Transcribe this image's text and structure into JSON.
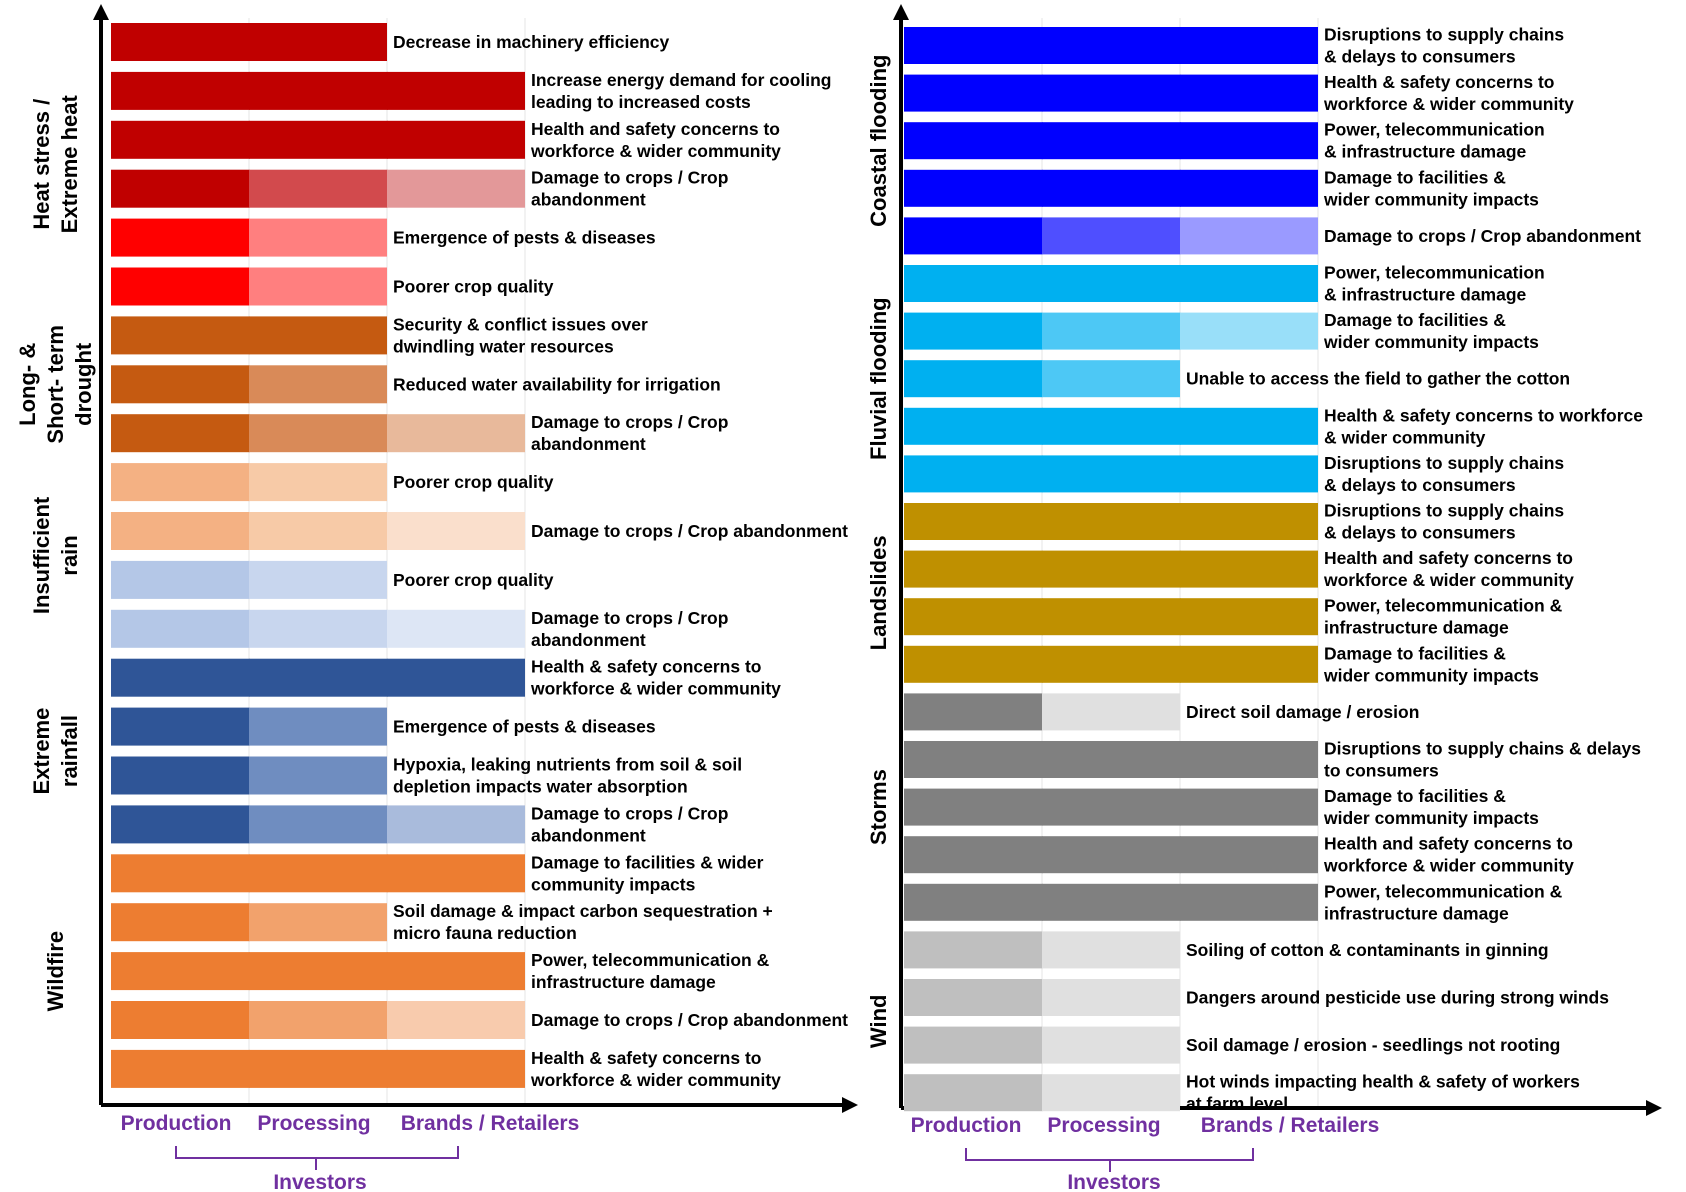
{
  "stage_labels": {
    "production": "Production",
    "processing": "Processing",
    "brands": "Brands / Retailers",
    "investors": "Investors"
  },
  "palettes": {
    "dark_red": [
      "#c00000"
    ],
    "red": [
      "#c00000",
      "#d24a4d",
      "#e39899"
    ],
    "bright_red": [
      "#ff0000",
      "#ff7f7f"
    ],
    "brown": [
      "#c55a11",
      "#d98a58",
      "#e8b99b"
    ],
    "peach": [
      "#f4b183",
      "#f7caa7",
      "#fadfcc"
    ],
    "light_blue": [
      "#b4c7e7",
      "#c8d6ee",
      "#dde6f5"
    ],
    "navy": [
      "#2f5597",
      "#6f8dc0",
      "#a9bbdc"
    ],
    "orange": [
      "#ed7d31",
      "#f2a26c",
      "#f8cbad"
    ],
    "blue": [
      "#0000ff",
      "#4f4fff",
      "#9a9aff"
    ],
    "sky": [
      "#00b0f0",
      "#4dc8f5",
      "#99dff9"
    ],
    "gold": [
      "#bf9000"
    ],
    "dark_gray": [
      "#808080",
      "#e0e0e0"
    ],
    "light_gray": [
      "#bfbfbf",
      "#e0e0e0"
    ]
  },
  "panels": [
    {
      "id": "left",
      "groups": [
        {
          "category": "Heat stress / Extreme heat",
          "category_lines": [
            "Heat stress /",
            "Extreme heat"
          ],
          "impacts": [
            {
              "label_lines": [
                "Decrease in machinery efficiency"
              ],
              "stages": 2,
              "palette": "dark_red"
            },
            {
              "label_lines": [
                "Increase energy demand for cooling",
                "leading to increased costs"
              ],
              "stages": 3,
              "palette": "dark_red"
            },
            {
              "label_lines": [
                "Health and safety concerns to",
                "workforce & wider community"
              ],
              "stages": 3,
              "palette": "dark_red"
            },
            {
              "label_lines": [
                "Damage to crops / Crop",
                "abandonment"
              ],
              "stages": 3,
              "palette": "red"
            },
            {
              "label_lines": [
                "Emergence of pests & diseases"
              ],
              "stages": 2,
              "palette": "bright_red"
            },
            {
              "label_lines": [
                "Poorer crop quality"
              ],
              "stages": 2,
              "palette": "bright_red"
            }
          ]
        },
        {
          "category": "Long- & Short- term drought",
          "category_lines": [
            "Long- &",
            "Short- term",
            "drought"
          ],
          "impacts": [
            {
              "label_lines": [
                "Security & conflict issues over",
                "dwindling  water resources"
              ],
              "stages": 2,
              "palette": "brown",
              "solid": true
            },
            {
              "label_lines": [
                "Reduced water availability  for irrigation"
              ],
              "stages": 2,
              "palette": "brown"
            },
            {
              "label_lines": [
                "Damage to crops / Crop",
                "abandonment"
              ],
              "stages": 3,
              "palette": "brown"
            }
          ]
        },
        {
          "category": "Insufficient rain",
          "category_lines": [
            "Insufficient",
            "rain"
          ],
          "impacts": [
            {
              "label_lines": [
                "Poorer crop quality"
              ],
              "stages": 2,
              "palette": "peach"
            },
            {
              "label_lines": [
                "Damage to crops / Crop abandonment"
              ],
              "stages": 3,
              "palette": "peach"
            },
            {
              "label_lines": [
                "Poorer crop quality"
              ],
              "stages": 2,
              "palette": "light_blue"
            },
            {
              "label_lines": [
                "Damage to crops / Crop",
                "abandonment"
              ],
              "stages": 3,
              "palette": "light_blue"
            }
          ]
        },
        {
          "category": "Extreme rainfall",
          "category_lines": [
            "Extreme",
            "rainfall"
          ],
          "impacts": [
            {
              "label_lines": [
                "Health & safety concerns to",
                "workforce & wider community"
              ],
              "stages": 3,
              "palette": "navy",
              "solid": true
            },
            {
              "label_lines": [
                "Emergence of pests & diseases"
              ],
              "stages": 2,
              "palette": "navy"
            },
            {
              "label_lines": [
                "Hypoxia, leaking  nutrients from soil & soil",
                "depletion impacts  water absorption"
              ],
              "stages": 2,
              "palette": "navy"
            },
            {
              "label_lines": [
                "Damage to crops / Crop",
                "abandonment"
              ],
              "stages": 3,
              "palette": "navy"
            }
          ]
        },
        {
          "category": "Wildfire",
          "category_lines": [
            "Wildfire"
          ],
          "impacts": [
            {
              "label_lines": [
                "Damage to facilities  & wider",
                "community impacts"
              ],
              "stages": 3,
              "palette": "orange",
              "solid": true
            },
            {
              "label_lines": [
                "Soil damage & impact carbon sequestration +",
                "micro fauna reduction"
              ],
              "stages": 2,
              "palette": "orange"
            },
            {
              "label_lines": [
                "Power, telecommunication  &",
                "infrastructure damage"
              ],
              "stages": 3,
              "palette": "orange",
              "solid": true
            },
            {
              "label_lines": [
                "Damage to crops / Crop abandonment"
              ],
              "stages": 3,
              "palette": "orange"
            },
            {
              "label_lines": [
                "Health & safety concerns to",
                "workforce & wider community"
              ],
              "stages": 3,
              "palette": "orange",
              "solid": true
            }
          ]
        }
      ]
    },
    {
      "id": "right",
      "groups": [
        {
          "category": "Coastal flooding",
          "category_lines": [
            "Coastal flooding"
          ],
          "impacts": [
            {
              "label_lines": [
                "Disruptions to supply chains",
                "& delays to consumers"
              ],
              "stages": 3,
              "palette": "blue",
              "solid": true
            },
            {
              "label_lines": [
                "Health & safety concerns to",
                "workforce & wider community"
              ],
              "stages": 3,
              "palette": "blue",
              "solid": true
            },
            {
              "label_lines": [
                "Power, telecommunication",
                "& infrastructure damage"
              ],
              "stages": 3,
              "palette": "blue",
              "solid": true
            },
            {
              "label_lines": [
                "Damage to facilities  &",
                "wider community impacts"
              ],
              "stages": 3,
              "palette": "blue",
              "solid": true
            },
            {
              "label_lines": [
                "Damage to crops / Crop abandonment"
              ],
              "stages": 3,
              "palette": "blue"
            }
          ]
        },
        {
          "category": "Fluvial flooding",
          "category_lines": [
            "Fluvial flooding"
          ],
          "impacts": [
            {
              "label_lines": [
                "Power, telecommunication",
                "& infrastructure damage"
              ],
              "stages": 3,
              "palette": "sky",
              "solid": true
            },
            {
              "label_lines": [
                "Damage to facilities  &",
                "wider community impacts"
              ],
              "stages": 3,
              "palette": "sky"
            },
            {
              "label_lines": [
                "Unable to access  the field to gather the cotton"
              ],
              "stages": 2,
              "palette": "sky"
            },
            {
              "label_lines": [
                "Health & safety concerns to workforce",
                "& wider community"
              ],
              "stages": 3,
              "palette": "sky",
              "solid": true
            },
            {
              "label_lines": [
                "Disruptions to supply chains",
                "& delays to consumers"
              ],
              "stages": 3,
              "palette": "sky",
              "solid": true
            }
          ]
        },
        {
          "category": "Landslides",
          "category_lines": [
            "Landslides"
          ],
          "impacts": [
            {
              "label_lines": [
                "Disruptions to supply chains",
                "& delays to consumers"
              ],
              "stages": 3,
              "palette": "gold",
              "solid": true
            },
            {
              "label_lines": [
                "Health and safety concerns to",
                "workforce & wider community"
              ],
              "stages": 3,
              "palette": "gold",
              "solid": true
            },
            {
              "label_lines": [
                "Power, telecommunication  &",
                "infrastructure damage"
              ],
              "stages": 3,
              "palette": "gold",
              "solid": true
            },
            {
              "label_lines": [
                "Damage to facilities  &",
                "wider community impacts"
              ],
              "stages": 3,
              "palette": "gold",
              "solid": true
            }
          ]
        },
        {
          "category": "Storms",
          "category_lines": [
            "Storms"
          ],
          "impacts": [
            {
              "label_lines": [
                "Direct soil damage  / erosion"
              ],
              "stages": 2,
              "palette": "dark_gray"
            },
            {
              "label_lines": [
                "Disruptions to supply chains & delays",
                "to consumers"
              ],
              "stages": 3,
              "palette": "dark_gray",
              "solid": true
            },
            {
              "label_lines": [
                "Damage to facilities  &",
                "wider community impacts"
              ],
              "stages": 3,
              "palette": "dark_gray",
              "solid": true
            },
            {
              "label_lines": [
                "Health and safety concerns to",
                "workforce & wider community"
              ],
              "stages": 3,
              "palette": "dark_gray",
              "solid": true
            },
            {
              "label_lines": [
                "Power, telecommunication  &",
                "infrastructure damage"
              ],
              "stages": 3,
              "palette": "dark_gray",
              "solid": true
            }
          ]
        },
        {
          "category": "Wind",
          "category_lines": [
            "Wind"
          ],
          "impacts": [
            {
              "label_lines": [
                "Soiling  of cotton & contaminants  in ginning"
              ],
              "stages": 2,
              "palette": "light_gray"
            },
            {
              "label_lines": [
                "Dangers around pesticide use during strong winds"
              ],
              "stages": 2,
              "palette": "light_gray"
            },
            {
              "label_lines": [
                "Soil damage  / erosion - seedlings  not rooting"
              ],
              "stages": 2,
              "palette": "light_gray"
            },
            {
              "label_lines": [
                "Hot winds impacting  health & safety of workers",
                "at farm level"
              ],
              "stages": 2,
              "palette": "light_gray"
            }
          ]
        }
      ]
    }
  ]
}
